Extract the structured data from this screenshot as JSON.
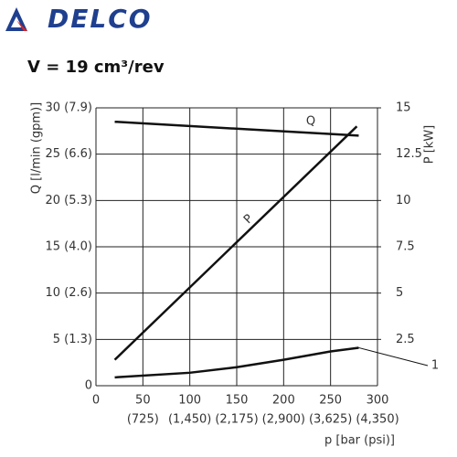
{
  "header": {
    "brand": "DELCO"
  },
  "chart_data": {
    "type": "line",
    "title": "V = 19 cm³/rev",
    "xlabel": "p  [bar (psi)]",
    "ylabel": "Q [l/min (gpm)]",
    "y2label": "P [kW]",
    "xlim": [
      0,
      300
    ],
    "xticks": [
      0,
      50,
      100,
      150,
      200,
      250,
      300
    ],
    "xticks_secondary": [
      null,
      "(725)",
      "(1,450)",
      "(2,175)",
      "(2,900)",
      "(3,625)",
      "(4,350)"
    ],
    "ylim": [
      0,
      30
    ],
    "yticks": [
      0,
      {
        "value": 5,
        "label": "5 (1.3)"
      },
      {
        "value": 10,
        "label": "10 (2.6)"
      },
      {
        "value": 15,
        "label": "15 (4.0)"
      },
      {
        "value": 20,
        "label": "20 (5.3)"
      },
      {
        "value": 25,
        "label": "25 (6.6)"
      },
      {
        "value": 30,
        "label": "30 (7.9)"
      }
    ],
    "y2lim": [
      0,
      15
    ],
    "y2ticks": [
      2.5,
      5,
      7.5,
      10,
      12.5,
      15
    ],
    "grid": true,
    "series": [
      {
        "name": "Q",
        "color": "#111111",
        "x": [
          20,
          280
        ],
        "values": [
          28.5,
          27.0
        ]
      },
      {
        "name": "P",
        "color": "#111111",
        "axis": "y2",
        "x": [
          20,
          278
        ],
        "values": [
          1.4,
          14.0
        ]
      },
      {
        "name": "1",
        "color": "#111111",
        "x": [
          20,
          100,
          150,
          200,
          250,
          280
        ],
        "values": [
          0.9,
          1.4,
          2.0,
          2.8,
          3.7,
          4.1
        ]
      }
    ]
  }
}
